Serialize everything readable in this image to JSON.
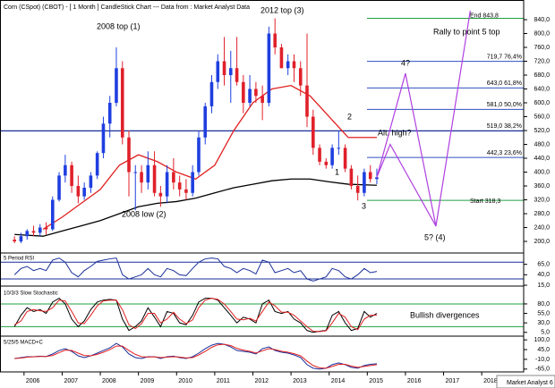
{
  "header": {
    "title": "Corn (CSpot) (CBOT) -  [ 1 Month ] CandleStick Chart --- Data from : Market Analyst Data",
    "footer": "Market Analyst 6"
  },
  "annotations": {
    "top_2008": "2008 top (1)",
    "top_2012": "2012 top (3)",
    "low_2008": "2008 low (2)",
    "p1": "1",
    "p2": "2",
    "p3": "3",
    "p4": "4?",
    "p5": "5? (4)",
    "alt_high": "Alt. high?",
    "rally": "Rally to point 5 top",
    "divergences": "Bullish divergences"
  },
  "chart_data": [
    {
      "type": "candlestick",
      "x": [
        2005.75,
        2005.92,
        2006.08,
        2006.25,
        2006.42,
        2006.58,
        2006.75,
        2006.92,
        2007.08,
        2007.25,
        2007.42,
        2007.58,
        2007.75,
        2007.92,
        2008.08,
        2008.25,
        2008.42,
        2008.58,
        2008.75,
        2008.92,
        2009.08,
        2009.25,
        2009.42,
        2009.58,
        2009.75,
        2009.92,
        2010.08,
        2010.25,
        2010.42,
        2010.58,
        2010.75,
        2010.92,
        2011.08,
        2011.25,
        2011.42,
        2011.58,
        2011.75,
        2011.92,
        2012.08,
        2012.25,
        2012.42,
        2012.58,
        2012.75,
        2012.92,
        2013.08,
        2013.25,
        2013.42,
        2013.58,
        2013.75,
        2013.92,
        2014.08,
        2014.25,
        2014.42,
        2014.58,
        2014.75,
        2014.92,
        2015.08,
        2015.25
      ],
      "open": [
        205,
        200,
        215,
        230,
        225,
        240,
        235,
        320,
        390,
        420,
        360,
        330,
        355,
        390,
        455,
        540,
        600,
        700,
        500,
        400,
        400,
        370,
        420,
        340,
        330,
        400,
        370,
        350,
        340,
        400,
        500,
        590,
        660,
        720,
        680,
        700,
        660,
        600,
        640,
        620,
        600,
        800,
        760,
        700,
        720,
        700,
        650,
        560,
        470,
        430,
        420,
        470,
        470,
        410,
        360,
        340,
        400,
        380
      ],
      "high": [
        215,
        225,
        235,
        245,
        250,
        255,
        330,
        400,
        450,
        430,
        390,
        370,
        400,
        460,
        560,
        620,
        760,
        720,
        520,
        420,
        420,
        460,
        460,
        360,
        420,
        440,
        390,
        380,
        420,
        520,
        600,
        680,
        740,
        790,
        750,
        790,
        680,
        680,
        660,
        650,
        820,
        843.8,
        770,
        740,
        740,
        720,
        800,
        580,
        480,
        440,
        480,
        520,
        480,
        420,
        390,
        410,
        420,
        410
      ],
      "low": [
        195,
        195,
        205,
        215,
        215,
        220,
        230,
        315,
        370,
        340,
        310,
        320,
        340,
        380,
        440,
        500,
        590,
        480,
        330,
        290,
        340,
        350,
        330,
        300,
        310,
        350,
        330,
        320,
        330,
        390,
        480,
        570,
        640,
        650,
        600,
        650,
        570,
        590,
        600,
        550,
        590,
        740,
        700,
        680,
        660,
        620,
        530,
        450,
        420,
        410,
        410,
        450,
        400,
        350,
        318.3,
        330,
        370,
        365
      ],
      "close": [
        200,
        215,
        230,
        225,
        240,
        235,
        320,
        390,
        420,
        360,
        330,
        355,
        390,
        455,
        540,
        600,
        700,
        500,
        400,
        400,
        370,
        420,
        340,
        330,
        400,
        370,
        350,
        340,
        400,
        500,
        590,
        660,
        720,
        680,
        700,
        660,
        600,
        640,
        620,
        600,
        800,
        760,
        700,
        720,
        700,
        650,
        560,
        470,
        430,
        420,
        470,
        470,
        410,
        360,
        340,
        400,
        380,
        385
      ],
      "up_color": "#1f3fdf",
      "down_color": "#e0202a",
      "series": [
        {
          "color": "#e02020",
          "x": [
            2006.5,
            2007,
            2007.5,
            2008,
            2008.5,
            2009,
            2009.5,
            2010,
            2010.5,
            2011,
            2011.5,
            2012,
            2012.5,
            2013,
            2013.5,
            2014,
            2014.5,
            2015.25
          ],
          "values": [
            235,
            270,
            310,
            350,
            420,
            450,
            430,
            400,
            380,
            420,
            520,
            600,
            640,
            650,
            620,
            560,
            500,
            500
          ]
        },
        {
          "color": "#000000",
          "x": [
            2005.75,
            2006.5,
            2007,
            2007.5,
            2008,
            2008.5,
            2009,
            2009.5,
            2010,
            2010.5,
            2011,
            2011.5,
            2012,
            2012.5,
            2013,
            2013.5,
            2014,
            2014.5,
            2015.25
          ],
          "values": [
            220,
            215,
            230,
            245,
            260,
            280,
            300,
            310,
            315,
            325,
            340,
            355,
            365,
            375,
            380,
            380,
            372,
            365,
            362
          ]
        }
      ],
      "fib_levels": [
        {
          "value": 719.7,
          "label": "719,7 76,4%",
          "color": "#3050c0"
        },
        {
          "value": 643,
          "label": "643,0 61,8%",
          "color": "#3050c0"
        },
        {
          "value": 581,
          "label": "581,0 50,0%",
          "color": "#3050c0"
        },
        {
          "value": 519,
          "label": "519,0 38,2%",
          "color": "#1a2f9a"
        },
        {
          "value": 442.3,
          "label": "442,3 23,6%",
          "color": "#3050c0"
        }
      ],
      "start_level": {
        "value": 318.3,
        "label": "Start 318,3",
        "color": "#20a040"
      },
      "end_level": {
        "value": 843.8,
        "label": "End 843,8",
        "color": "#20a040"
      },
      "projections": [
        {
          "color": "#b040e0",
          "x": [
            2015.25,
            2016.0,
            2016.8,
            2017.7
          ],
          "values": [
            385,
            685,
            244,
            866
          ]
        },
        {
          "color": "#b040e0",
          "x": [
            2015.25,
            2015.6,
            2016.8
          ],
          "values": [
            385,
            480,
            244
          ]
        }
      ],
      "xlim": [
        2005.37,
        2019.1
      ],
      "ylim": [
        166.5,
        896.8
      ],
      "yticks": [
        {
          "value": 200,
          "label": "200,0"
        },
        {
          "value": 240,
          "label": "240,0"
        },
        {
          "value": 280,
          "label": "280,0"
        },
        {
          "value": 320,
          "label": "320,0"
        },
        {
          "value": 360,
          "label": "360,0"
        },
        {
          "value": 400,
          "label": "400,0"
        },
        {
          "value": 440,
          "label": "440,0"
        },
        {
          "value": 480,
          "label": "480,0"
        },
        {
          "value": 520,
          "label": "520,0"
        },
        {
          "value": 560,
          "label": "560,0"
        },
        {
          "value": 600,
          "label": "600,0"
        },
        {
          "value": 640,
          "label": "640,0"
        },
        {
          "value": 680,
          "label": "680,0"
        },
        {
          "value": 720,
          "label": "720,0"
        },
        {
          "value": 760,
          "label": "760,0"
        },
        {
          "value": 800,
          "label": "800,0"
        },
        {
          "value": 840,
          "label": "840,0"
        }
      ]
    },
    {
      "type": "line",
      "title": "5 Period RSI",
      "x": [
        2005.75,
        2005.92,
        2006.08,
        2006.25,
        2006.42,
        2006.58,
        2006.75,
        2006.92,
        2007.08,
        2007.25,
        2007.42,
        2007.58,
        2007.75,
        2007.92,
        2008.08,
        2008.25,
        2008.42,
        2008.58,
        2008.75,
        2008.92,
        2009.08,
        2009.25,
        2009.42,
        2009.58,
        2009.75,
        2009.92,
        2010.08,
        2010.25,
        2010.42,
        2010.58,
        2010.75,
        2010.92,
        2011.08,
        2011.25,
        2011.42,
        2011.58,
        2011.75,
        2011.92,
        2012.08,
        2012.25,
        2012.42,
        2012.58,
        2012.75,
        2012.92,
        2013.08,
        2013.25,
        2013.42,
        2013.58,
        2013.75,
        2013.92,
        2014.08,
        2014.25,
        2014.42,
        2014.58,
        2014.75,
        2014.92,
        2015.08,
        2015.25
      ],
      "series": [
        {
          "color": "#1a2f9a",
          "values": [
            40,
            55,
            60,
            50,
            55,
            50,
            75,
            80,
            70,
            45,
            35,
            50,
            60,
            72,
            75,
            78,
            80,
            40,
            30,
            35,
            40,
            55,
            40,
            35,
            55,
            50,
            40,
            38,
            55,
            70,
            78,
            80,
            78,
            60,
            55,
            45,
            55,
            50,
            42,
            75,
            70,
            45,
            50,
            55,
            45,
            50,
            30,
            25,
            30,
            35,
            55,
            50,
            35,
            30,
            40,
            55,
            45,
            48
          ]
        }
      ],
      "hlines": [
        70,
        30
      ],
      "hline_color": "#1a2f9a",
      "xlim": [
        2005.37,
        2019.1
      ],
      "ylim": [
        13,
        92
      ],
      "yticks": [
        {
          "value": 65,
          "label": "65,0"
        },
        {
          "value": 40,
          "label": "40,0"
        },
        {
          "value": 15,
          "label": "15,0"
        }
      ]
    },
    {
      "type": "line",
      "title": "10/3/3 Slow Stochastic",
      "x": [
        2005.75,
        2005.92,
        2006.08,
        2006.25,
        2006.42,
        2006.58,
        2006.75,
        2006.92,
        2007.08,
        2007.25,
        2007.42,
        2007.58,
        2007.75,
        2007.92,
        2008.08,
        2008.25,
        2008.42,
        2008.58,
        2008.75,
        2008.92,
        2009.08,
        2009.25,
        2009.42,
        2009.58,
        2009.75,
        2009.92,
        2010.08,
        2010.25,
        2010.42,
        2010.58,
        2010.75,
        2010.92,
        2011.08,
        2011.25,
        2011.42,
        2011.58,
        2011.75,
        2011.92,
        2012.08,
        2012.25,
        2012.42,
        2012.58,
        2012.75,
        2012.92,
        2013.08,
        2013.25,
        2013.42,
        2013.58,
        2013.75,
        2013.92,
        2014.08,
        2014.25,
        2014.42,
        2014.58,
        2014.75,
        2014.92,
        2015.08,
        2015.25
      ],
      "series": [
        {
          "color": "#000000",
          "values": [
            20,
            50,
            70,
            60,
            65,
            55,
            85,
            95,
            80,
            40,
            20,
            35,
            65,
            85,
            90,
            92,
            90,
            40,
            10,
            20,
            35,
            70,
            45,
            20,
            60,
            55,
            30,
            25,
            50,
            85,
            95,
            95,
            90,
            70,
            50,
            30,
            45,
            40,
            30,
            80,
            90,
            60,
            55,
            60,
            40,
            30,
            10,
            5,
            8,
            10,
            50,
            60,
            30,
            10,
            15,
            60,
            45,
            55
          ]
        },
        {
          "color": "#e02020",
          "values": [
            25,
            35,
            60,
            65,
            62,
            60,
            70,
            90,
            88,
            60,
            30,
            28,
            50,
            75,
            88,
            90,
            90,
            65,
            25,
            15,
            28,
            55,
            55,
            30,
            40,
            58,
            40,
            28,
            38,
            70,
            90,
            95,
            92,
            80,
            60,
            40,
            38,
            42,
            35,
            60,
            85,
            75,
            58,
            58,
            50,
            35,
            20,
            8,
            7,
            9,
            30,
            55,
            45,
            20,
            12,
            40,
            50,
            50
          ]
        }
      ],
      "hlines": [
        80,
        20
      ],
      "hline_color": "#20a040",
      "xlim": [
        2005.37,
        2019.1
      ],
      "ylim": [
        -5,
        127
      ],
      "yticks": [
        {
          "value": 80,
          "label": "80,0"
        },
        {
          "value": 55,
          "label": "55,0"
        },
        {
          "value": 30,
          "label": "30,0"
        },
        {
          "value": 5,
          "label": "5,0"
        }
      ]
    },
    {
      "type": "line",
      "title": "5/25/5 MACD+C",
      "x": [
        2005.75,
        2005.92,
        2006.08,
        2006.25,
        2006.42,
        2006.58,
        2006.75,
        2006.92,
        2007.08,
        2007.25,
        2007.42,
        2007.58,
        2007.75,
        2007.92,
        2008.08,
        2008.25,
        2008.42,
        2008.58,
        2008.75,
        2008.92,
        2009.08,
        2009.25,
        2009.42,
        2009.58,
        2009.75,
        2009.92,
        2010.08,
        2010.25,
        2010.42,
        2010.58,
        2010.75,
        2010.92,
        2011.08,
        2011.25,
        2011.42,
        2011.58,
        2011.75,
        2011.92,
        2012.08,
        2012.25,
        2012.42,
        2012.58,
        2012.75,
        2012.92,
        2013.08,
        2013.25,
        2013.42,
        2013.58,
        2013.75,
        2013.92,
        2014.08,
        2014.25,
        2014.42,
        2014.58,
        2014.75,
        2014.92,
        2015.08,
        2015.25
      ],
      "series": [
        {
          "color": "#1a2f9a",
          "values": [
            -5,
            0,
            5,
            5,
            8,
            6,
            20,
            40,
            50,
            35,
            10,
            0,
            10,
            25,
            40,
            55,
            80,
            60,
            20,
            0,
            -5,
            5,
            5,
            -5,
            5,
            8,
            0,
            -5,
            5,
            25,
            50,
            70,
            80,
            75,
            60,
            40,
            35,
            30,
            20,
            50,
            60,
            40,
            30,
            25,
            15,
            0,
            -40,
            -60,
            -65,
            -60,
            -40,
            -30,
            -40,
            -55,
            -60,
            -45,
            -38,
            -35
          ]
        },
        {
          "color": "#e02020",
          "values": [
            -5,
            -3,
            2,
            4,
            6,
            6,
            12,
            28,
            42,
            40,
            25,
            12,
            10,
            18,
            30,
            45,
            65,
            65,
            40,
            18,
            5,
            3,
            4,
            0,
            2,
            5,
            3,
            -2,
            0,
            15,
            35,
            58,
            72,
            75,
            68,
            52,
            42,
            35,
            26,
            38,
            50,
            45,
            36,
            30,
            22,
            10,
            -20,
            -45,
            -58,
            -60,
            -50,
            -38,
            -38,
            -48,
            -55,
            -50,
            -45,
            -40
          ]
        }
      ],
      "xlim": [
        2005.37,
        2019.1
      ],
      "ylim": [
        -81,
        121
      ],
      "yticks": [
        {
          "value": 100,
          "label": "100,0"
        },
        {
          "value": 45,
          "label": "45,0"
        },
        {
          "value": -10,
          "label": "-10,0"
        },
        {
          "value": -65,
          "label": "-65,0"
        }
      ],
      "xticks": [
        2006,
        2007,
        2008,
        2009,
        2010,
        2011,
        2012,
        2013,
        2014,
        2015,
        2016,
        2017,
        2018
      ]
    }
  ]
}
